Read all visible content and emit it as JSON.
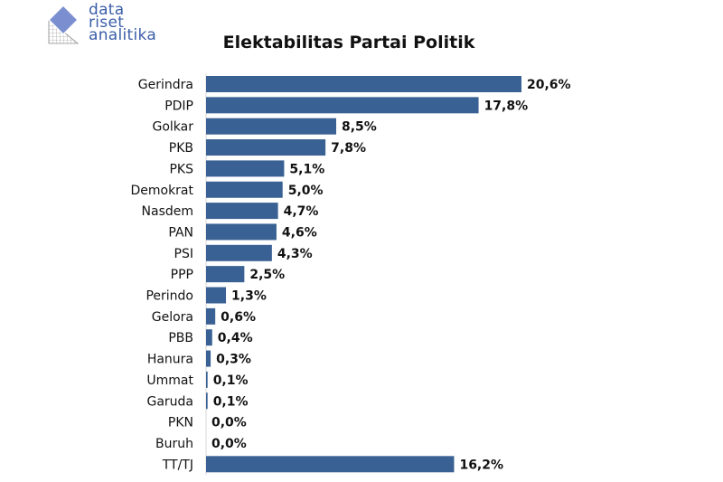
{
  "logo": {
    "lines": [
      "data",
      "riset",
      "analitika"
    ],
    "icon": "grid-diamond-logo-icon"
  },
  "chart_data": {
    "type": "bar",
    "orientation": "horizontal",
    "title": "Elektabilitas Partai Politik",
    "categories": [
      "Gerindra",
      "PDIP",
      "Golkar",
      "PKB",
      "PKS",
      "Demokrat",
      "Nasdem",
      "PAN",
      "PSI",
      "PPP",
      "Perindo",
      "Gelora",
      "PBB",
      "Hanura",
      "Ummat",
      "Garuda",
      "PKN",
      "Buruh",
      "TT/TJ"
    ],
    "values": [
      20.6,
      17.8,
      8.5,
      7.8,
      5.1,
      5.0,
      4.7,
      4.6,
      4.3,
      2.5,
      1.3,
      0.6,
      0.4,
      0.3,
      0.1,
      0.1,
      0.0,
      0.0,
      16.2
    ],
    "value_labels": [
      "20,6%",
      "17,8%",
      "8,5%",
      "7,8%",
      "5,1%",
      "5,0%",
      "4,7%",
      "4,6%",
      "4,3%",
      "2,5%",
      "1,3%",
      "0,6%",
      "0,4%",
      "0,3%",
      "0,1%",
      "0,1%",
      "0,0%",
      "0,0%",
      "16,2%"
    ],
    "bar_color": "#3a6193",
    "grid": false,
    "legend": "none"
  }
}
